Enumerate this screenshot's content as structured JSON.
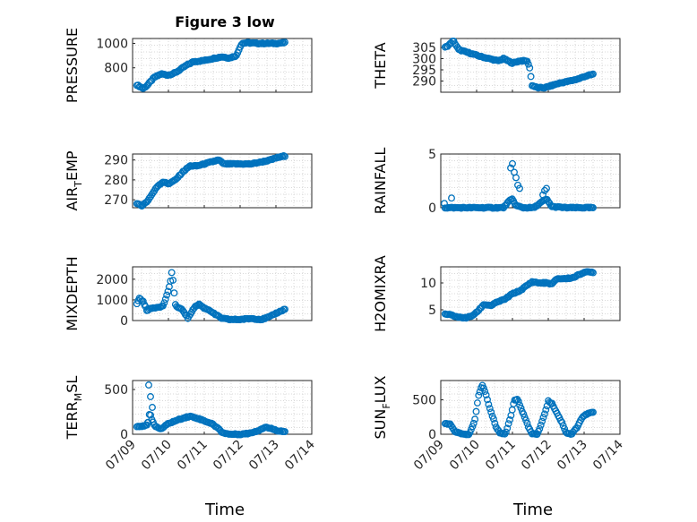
{
  "chart_data": {
    "type": "scatter",
    "figure_title": "Figure 3 low",
    "marker_color": "#0072BD",
    "x_tick_labels": [
      "07/09",
      "07/10",
      "07/11",
      "07/12",
      "07/13",
      "07/14"
    ],
    "xlim": [
      0,
      5
    ],
    "xlabel": "Time",
    "grid": "minor-dotted",
    "panels": [
      {
        "id": "pressure",
        "ylabel": "PRESSURE",
        "ylim": [
          600,
          1040
        ],
        "yticks": [
          800,
          1000
        ],
        "anchors": [
          [
            0.12,
            660
          ],
          [
            0.18,
            650
          ],
          [
            0.3,
            630
          ],
          [
            0.42,
            660
          ],
          [
            0.6,
            720
          ],
          [
            0.8,
            750
          ],
          [
            1.0,
            740
          ],
          [
            1.2,
            760
          ],
          [
            1.5,
            820
          ],
          [
            1.7,
            850
          ],
          [
            2.0,
            860
          ],
          [
            2.3,
            880
          ],
          [
            2.5,
            890
          ],
          [
            2.7,
            880
          ],
          [
            2.9,
            900
          ],
          [
            2.98,
            960
          ],
          [
            3.05,
            1000
          ],
          [
            3.2,
            1005
          ],
          [
            3.5,
            1000
          ],
          [
            4.0,
            1000
          ],
          [
            4.25,
            1005
          ]
        ]
      },
      {
        "id": "theta",
        "ylabel": "THETA",
        "ylim": [
          285,
          309
        ],
        "yticks": [
          290,
          295,
          300,
          305
        ],
        "anchors": [
          [
            0.12,
            305
          ],
          [
            0.22,
            306
          ],
          [
            0.35,
            308
          ],
          [
            0.5,
            304
          ],
          [
            0.7,
            303
          ],
          [
            0.9,
            302
          ],
          [
            1.1,
            301
          ],
          [
            1.35,
            300
          ],
          [
            1.6,
            299
          ],
          [
            1.75,
            300
          ],
          [
            2.0,
            298
          ],
          [
            2.2,
            299
          ],
          [
            2.4,
            299
          ],
          [
            2.47,
            297
          ],
          [
            2.55,
            288
          ],
          [
            2.7,
            287
          ],
          [
            2.9,
            287
          ],
          [
            3.1,
            288
          ],
          [
            3.3,
            289
          ],
          [
            3.6,
            290
          ],
          [
            3.85,
            291
          ],
          [
            4.0,
            292
          ],
          [
            4.25,
            293
          ]
        ]
      },
      {
        "id": "air_temp",
        "ylabel": "AIR_TEMP",
        "ylim": [
          266,
          293
        ],
        "yticks": [
          270,
          280,
          290
        ],
        "anchors": [
          [
            0.12,
            268
          ],
          [
            0.25,
            267
          ],
          [
            0.4,
            269
          ],
          [
            0.55,
            273
          ],
          [
            0.7,
            277
          ],
          [
            0.85,
            279
          ],
          [
            1.0,
            278
          ],
          [
            1.2,
            280
          ],
          [
            1.4,
            284
          ],
          [
            1.6,
            287
          ],
          [
            1.8,
            287
          ],
          [
            2.0,
            288
          ],
          [
            2.2,
            289
          ],
          [
            2.4,
            290
          ],
          [
            2.55,
            288
          ],
          [
            2.75,
            288
          ],
          [
            3.0,
            288
          ],
          [
            3.3,
            288
          ],
          [
            3.6,
            289
          ],
          [
            3.85,
            290
          ],
          [
            4.0,
            291
          ],
          [
            4.25,
            292
          ]
        ]
      },
      {
        "id": "rainfall",
        "ylabel": "RAINFALL",
        "ylim": [
          0,
          5
        ],
        "yticks": [
          0,
          5
        ],
        "anchors": [
          [
            0.12,
            0
          ],
          [
            0.5,
            0
          ],
          [
            1.0,
            0
          ],
          [
            1.5,
            0
          ],
          [
            1.75,
            0
          ],
          [
            1.9,
            0.6
          ],
          [
            2.0,
            0.8
          ],
          [
            2.1,
            0.2
          ],
          [
            2.3,
            0
          ],
          [
            2.6,
            0
          ],
          [
            2.8,
            0.5
          ],
          [
            2.95,
            0.8
          ],
          [
            3.1,
            0.1
          ],
          [
            3.5,
            0
          ],
          [
            4.0,
            0
          ],
          [
            4.25,
            0
          ]
        ],
        "extras": [
          [
            0.1,
            0.4
          ],
          [
            0.3,
            0.9
          ],
          [
            1.95,
            3.7
          ],
          [
            2.0,
            4.1
          ],
          [
            2.05,
            3.3
          ],
          [
            2.1,
            2.8
          ],
          [
            2.15,
            2.1
          ],
          [
            2.2,
            1.8
          ],
          [
            2.85,
            1.2
          ],
          [
            2.9,
            1.6
          ],
          [
            2.95,
            1.8
          ]
        ]
      },
      {
        "id": "mixdepth",
        "ylabel": "MIXDEPTH",
        "ylim": [
          0,
          2600
        ],
        "yticks": [
          0,
          1000,
          2000
        ],
        "anchors": [
          [
            0.12,
            800
          ],
          [
            0.18,
            1100
          ],
          [
            0.3,
            900
          ],
          [
            0.4,
            500
          ],
          [
            0.55,
            600
          ],
          [
            0.7,
            650
          ],
          [
            0.85,
            700
          ],
          [
            0.95,
            1200
          ],
          [
            1.05,
            1800
          ],
          [
            1.1,
            2400
          ],
          [
            1.2,
            700
          ],
          [
            1.4,
            500
          ],
          [
            1.55,
            100
          ],
          [
            1.7,
            600
          ],
          [
            1.85,
            800
          ],
          [
            2.0,
            600
          ],
          [
            2.15,
            500
          ],
          [
            2.3,
            300
          ],
          [
            2.5,
            100
          ],
          [
            2.7,
            50
          ],
          [
            3.0,
            50
          ],
          [
            3.3,
            100
          ],
          [
            3.6,
            50
          ],
          [
            3.85,
            200
          ],
          [
            4.0,
            350
          ],
          [
            4.25,
            550
          ]
        ]
      },
      {
        "id": "h2omixra",
        "ylabel": "H2OMIXRA",
        "ylim": [
          3,
          13
        ],
        "yticks": [
          5,
          10
        ],
        "anchors": [
          [
            0.12,
            4.2
          ],
          [
            0.3,
            4.0
          ],
          [
            0.5,
            3.6
          ],
          [
            0.7,
            3.5
          ],
          [
            0.85,
            3.8
          ],
          [
            1.0,
            4.5
          ],
          [
            1.2,
            6
          ],
          [
            1.4,
            5.8
          ],
          [
            1.6,
            6.5
          ],
          [
            1.8,
            7.0
          ],
          [
            2.0,
            8
          ],
          [
            2.2,
            8.5
          ],
          [
            2.4,
            9.5
          ],
          [
            2.55,
            10.2
          ],
          [
            2.75,
            10
          ],
          [
            2.95,
            10
          ],
          [
            3.1,
            9.8
          ],
          [
            3.25,
            10.8
          ],
          [
            3.5,
            10.8
          ],
          [
            3.7,
            11
          ],
          [
            3.85,
            11.5
          ],
          [
            4.0,
            12
          ],
          [
            4.25,
            12
          ]
        ]
      },
      {
        "id": "terr_msl",
        "ylabel": "TERR_MSL",
        "ylim": [
          0,
          600
        ],
        "yticks": [
          0,
          500
        ],
        "anchors": [
          [
            0.12,
            90
          ],
          [
            0.3,
            90
          ],
          [
            0.42,
            100
          ],
          [
            0.48,
            250
          ],
          [
            0.55,
            150
          ],
          [
            0.65,
            80
          ],
          [
            0.8,
            60
          ],
          [
            1.0,
            120
          ],
          [
            1.2,
            150
          ],
          [
            1.4,
            180
          ],
          [
            1.6,
            200
          ],
          [
            1.8,
            180
          ],
          [
            2.0,
            150
          ],
          [
            2.2,
            120
          ],
          [
            2.35,
            80
          ],
          [
            2.5,
            20
          ],
          [
            2.7,
            0
          ],
          [
            3.0,
            0
          ],
          [
            3.25,
            10
          ],
          [
            3.5,
            40
          ],
          [
            3.7,
            80
          ],
          [
            3.9,
            60
          ],
          [
            4.05,
            40
          ],
          [
            4.25,
            30
          ]
        ],
        "extras": [
          [
            0.45,
            550
          ],
          [
            0.5,
            420
          ],
          [
            0.55,
            300
          ],
          [
            0.42,
            130
          ]
        ]
      },
      {
        "id": "sun_flux",
        "ylabel": "SUN_FLUX",
        "ylim": [
          0,
          780
        ],
        "yticks": [
          0,
          500
        ],
        "anchors": [
          [
            0.12,
            150
          ],
          [
            0.25,
            150
          ],
          [
            0.4,
            40
          ],
          [
            0.6,
            0
          ],
          [
            0.8,
            0
          ],
          [
            0.95,
            200
          ],
          [
            1.05,
            550
          ],
          [
            1.15,
            720
          ],
          [
            1.25,
            600
          ],
          [
            1.35,
            400
          ],
          [
            1.45,
            250
          ],
          [
            1.55,
            100
          ],
          [
            1.65,
            20
          ],
          [
            1.8,
            0
          ],
          [
            1.95,
            250
          ],
          [
            2.05,
            500
          ],
          [
            2.15,
            500
          ],
          [
            2.3,
            300
          ],
          [
            2.45,
            100
          ],
          [
            2.55,
            10
          ],
          [
            2.7,
            0
          ],
          [
            2.9,
            300
          ],
          [
            3.0,
            480
          ],
          [
            3.1,
            450
          ],
          [
            3.25,
            300
          ],
          [
            3.4,
            150
          ],
          [
            3.5,
            20
          ],
          [
            3.65,
            0
          ],
          [
            3.8,
            100
          ],
          [
            3.95,
            250
          ],
          [
            4.1,
            300
          ],
          [
            4.25,
            320
          ]
        ]
      }
    ]
  }
}
